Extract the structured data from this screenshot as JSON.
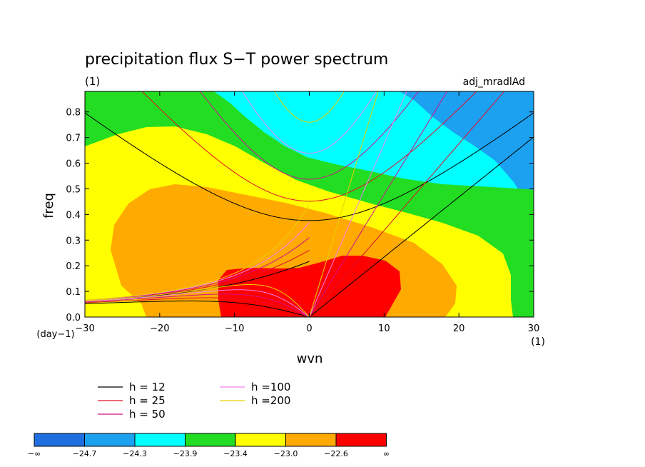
{
  "chart_data": {
    "type": "heatmap",
    "title": "precipitation flux S−T power spectrum",
    "subtitle_left": "(1)",
    "subtitle_right": "adj_mradlAd",
    "xlabel": "wvn",
    "ylabel": "freq",
    "x_unit": "(1)",
    "y_unit": "(day−1)",
    "xlim": [
      -30,
      30
    ],
    "ylim": [
      0,
      0.88
    ],
    "x_ticks": [
      -30,
      -20,
      -10,
      0,
      10,
      20,
      30
    ],
    "x_tick_labels": [
      "−30",
      "−20",
      "−10",
      "0",
      "10",
      "20",
      "30"
    ],
    "y_ticks": [
      0,
      0.1,
      0.2,
      0.3,
      0.4,
      0.5,
      0.6,
      0.7,
      0.8
    ],
    "y_tick_labels": [
      "0.0",
      "0.1",
      "0.2",
      "0.3",
      "0.4",
      "0.5",
      "0.6",
      "0.7",
      "0.8"
    ],
    "grid": false,
    "contour_levels": [
      -24.7,
      -24.3,
      -23.9,
      -23.4,
      -23.0,
      -22.6
    ],
    "colorbar": {
      "colors": [
        "#1f6fe0",
        "#1ca0f0",
        "#00ffff",
        "#22dd22",
        "#ffff00",
        "#ffaa00",
        "#ff0000"
      ],
      "labels": [
        "−∞",
        "−24.7",
        "−24.3",
        "−23.9",
        "−23.4",
        "−23.0",
        "−22.6",
        "∞"
      ]
    },
    "series": [
      {
        "name": "h = 12",
        "h": 12,
        "color": "#000000"
      },
      {
        "name": "h = 25",
        "h": 25,
        "color": "#e0102a"
      },
      {
        "name": "h = 50",
        "h": 50,
        "color": "#d0108a"
      },
      {
        "name": "h =100",
        "h": 100,
        "color": "#f080f0"
      },
      {
        "name": "h =200",
        "h": 200,
        "color": "#e8d000"
      }
    ]
  }
}
